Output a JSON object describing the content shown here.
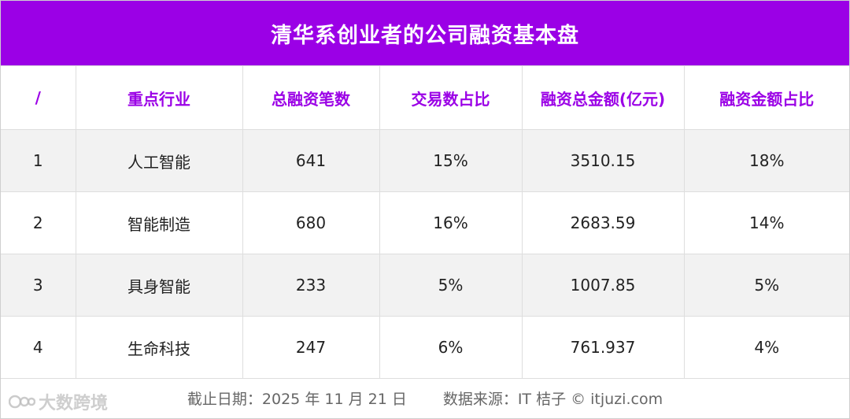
{
  "title": "清华系创业者的公司融资基本盘",
  "chart_data": {
    "type": "table",
    "title": "清华系创业者的公司融资基本盘",
    "columns": [
      "/",
      "重点行业",
      "总融资笔数",
      "交易数占比",
      "融资总金额(亿元)",
      "融资金额占比"
    ],
    "rows": [
      [
        "1",
        "人工智能",
        "641",
        "15%",
        "3510.15",
        "18%"
      ],
      [
        "2",
        "智能制造",
        "680",
        "16%",
        "2683.59",
        "14%"
      ],
      [
        "3",
        "具身智能",
        "233",
        "5%",
        "1007.85",
        "5%"
      ],
      [
        "4",
        "生命科技",
        "247",
        "6%",
        "761.937",
        "4%"
      ]
    ]
  },
  "footer": {
    "date_text": "截止日期：2025 年 11 月 21 日",
    "source_text": "数据来源：IT 桔子 © itjuzi.com"
  },
  "watermark": {
    "text": "大数跨境",
    "icon": "logo-icon"
  },
  "colors": {
    "accent": "#9b00e6",
    "row_stripe": "#f2f2f2",
    "text": "#222222"
  }
}
